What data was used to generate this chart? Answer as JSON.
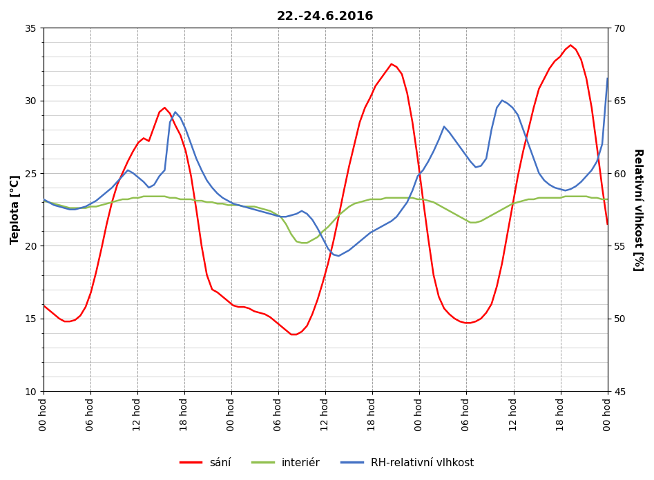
{
  "title": "22.-24.6.2016",
  "ylabel_left": "Teplota [°C]",
  "ylabel_right": "Relativní vlhkost [%]",
  "ylim_left": [
    10,
    35
  ],
  "ylim_right": [
    45,
    70
  ],
  "yticks_left": [
    10,
    15,
    20,
    25,
    30,
    35
  ],
  "yticks_right": [
    45,
    50,
    55,
    60,
    65,
    70
  ],
  "xtick_labels": [
    "00 hod",
    "06 hod",
    "12 hod",
    "18 hod",
    "00 hod",
    "06 hod",
    "12 hod",
    "18 hod",
    "00 hod",
    "06 hod",
    "12 hod",
    "18 hod",
    "00 hod"
  ],
  "xtick_positions": [
    0,
    6,
    12,
    18,
    24,
    30,
    36,
    42,
    48,
    54,
    60,
    66,
    72
  ],
  "color_sani": "#FF0000",
  "color_interior": "#92C050",
  "color_rh": "#4472C4",
  "legend_labels": [
    "sání",
    "interiér",
    "RH-relativní vlhkost"
  ],
  "background_color": "#FFFFFF",
  "plot_bg": "#FFFFFF",
  "grid_color_h": "#C0C0C0",
  "grid_color_v": "#A0A0A0",
  "title_fontsize": 13,
  "axis_fontsize": 11,
  "tick_fontsize": 10,
  "legend_fontsize": 11,
  "sani": [
    15.9,
    15.6,
    15.3,
    15.0,
    14.8,
    14.8,
    14.9,
    15.2,
    15.8,
    16.8,
    18.2,
    19.8,
    21.5,
    23.0,
    24.2,
    25.0,
    25.8,
    26.5,
    27.1,
    27.4,
    27.2,
    28.2,
    29.2,
    29.5,
    29.1,
    28.3,
    27.6,
    26.5,
    24.8,
    22.5,
    20.0,
    18.0,
    17.0,
    16.8,
    16.5,
    16.2,
    15.9,
    15.8,
    15.8,
    15.7,
    15.5,
    15.4,
    15.3,
    15.1,
    14.8,
    14.5,
    14.2,
    13.9,
    13.9,
    14.1,
    14.5,
    15.3,
    16.3,
    17.5,
    18.8,
    20.3,
    22.0,
    23.8,
    25.5,
    27.0,
    28.5,
    29.5,
    30.2,
    31.0,
    31.5,
    32.0,
    32.5,
    32.3,
    31.8,
    30.5,
    28.5,
    26.0,
    23.2,
    20.5,
    18.0,
    16.5,
    15.7,
    15.3,
    15.0,
    14.8,
    14.7,
    14.7,
    14.8,
    15.0,
    15.4,
    16.0,
    17.2,
    18.8,
    20.8,
    22.8,
    24.8,
    26.5,
    28.0,
    29.5,
    30.8,
    31.5,
    32.2,
    32.7,
    33.0,
    33.5,
    33.8,
    33.5,
    32.8,
    31.5,
    29.5,
    26.8,
    24.0,
    21.5
  ],
  "interior": [
    23.1,
    23.0,
    22.9,
    22.8,
    22.7,
    22.6,
    22.6,
    22.6,
    22.6,
    22.7,
    22.7,
    22.8,
    22.9,
    23.0,
    23.1,
    23.2,
    23.2,
    23.3,
    23.3,
    23.4,
    23.4,
    23.4,
    23.4,
    23.4,
    23.3,
    23.3,
    23.2,
    23.2,
    23.2,
    23.1,
    23.1,
    23.0,
    23.0,
    22.9,
    22.9,
    22.8,
    22.8,
    22.8,
    22.7,
    22.7,
    22.7,
    22.6,
    22.5,
    22.4,
    22.2,
    22.0,
    21.5,
    20.8,
    20.3,
    20.2,
    20.2,
    20.4,
    20.6,
    21.0,
    21.3,
    21.7,
    22.1,
    22.4,
    22.7,
    22.9,
    23.0,
    23.1,
    23.2,
    23.2,
    23.2,
    23.3,
    23.3,
    23.3,
    23.3,
    23.3,
    23.3,
    23.2,
    23.2,
    23.1,
    23.0,
    22.8,
    22.6,
    22.4,
    22.2,
    22.0,
    21.8,
    21.6,
    21.6,
    21.7,
    21.9,
    22.1,
    22.3,
    22.5,
    22.7,
    22.9,
    23.0,
    23.1,
    23.2,
    23.2,
    23.3,
    23.3,
    23.3,
    23.3,
    23.3,
    23.4,
    23.4,
    23.4,
    23.4,
    23.4,
    23.3,
    23.3,
    23.2,
    23.2
  ],
  "rh": [
    58.2,
    58.0,
    57.8,
    57.7,
    57.6,
    57.5,
    57.5,
    57.6,
    57.7,
    57.9,
    58.1,
    58.4,
    58.7,
    59.0,
    59.4,
    59.8,
    60.2,
    60.0,
    59.7,
    59.4,
    59.0,
    59.2,
    59.8,
    60.2,
    63.5,
    64.2,
    63.8,
    63.0,
    62.0,
    61.0,
    60.2,
    59.5,
    59.0,
    58.6,
    58.3,
    58.1,
    57.9,
    57.8,
    57.7,
    57.6,
    57.5,
    57.4,
    57.3,
    57.2,
    57.1,
    57.0,
    57.0,
    57.1,
    57.2,
    57.4,
    57.2,
    56.8,
    56.2,
    55.5,
    54.8,
    54.4,
    54.3,
    54.5,
    54.7,
    55.0,
    55.3,
    55.6,
    55.9,
    56.1,
    56.3,
    56.5,
    56.7,
    57.0,
    57.5,
    58.0,
    58.8,
    59.8,
    60.2,
    60.8,
    61.5,
    62.3,
    63.2,
    62.8,
    62.3,
    61.8,
    61.3,
    60.8,
    60.4,
    60.5,
    61.0,
    63.0,
    64.5,
    65.0,
    64.8,
    64.5,
    64.0,
    63.0,
    62.0,
    61.0,
    60.0,
    59.5,
    59.2,
    59.0,
    58.9,
    58.8,
    58.9,
    59.1,
    59.4,
    59.8,
    60.2,
    60.8,
    62.0,
    66.5
  ]
}
